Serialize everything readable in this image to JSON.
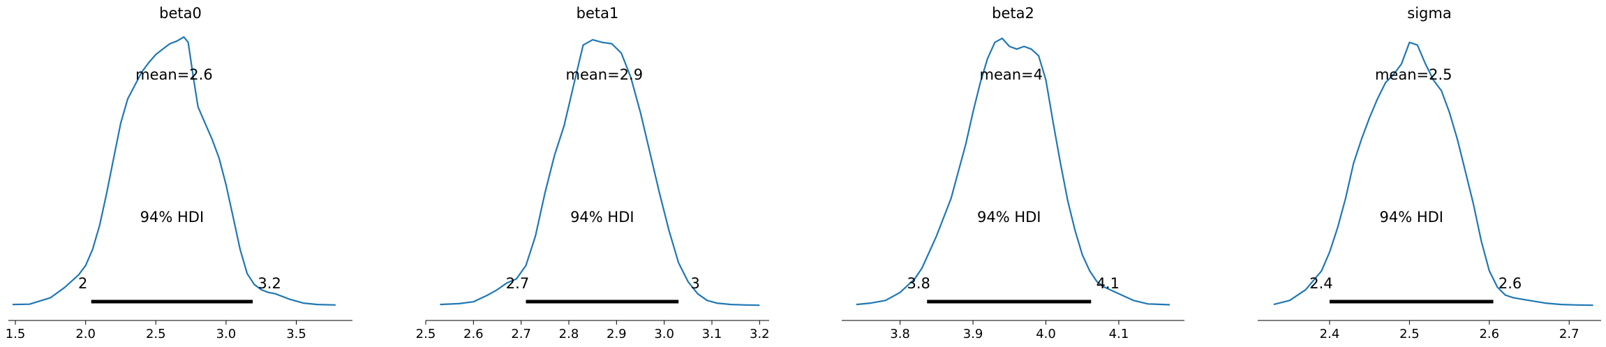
{
  "chart_data": [
    {
      "type": "line",
      "title": "beta0",
      "mean_label": "mean=2.6",
      "hdi_label": "94% HDI",
      "hdi": [
        2.04,
        3.19
      ],
      "hdi_low_label": "2",
      "hdi_high_label": "3.2",
      "xlim": [
        1.45,
        3.9
      ],
      "xticks": [
        1.5,
        2.0,
        2.5,
        3.0,
        3.5
      ],
      "xtick_labels": [
        "1.5",
        "2.0",
        "2.5",
        "3.0",
        "3.5"
      ],
      "x": [
        1.48,
        1.6,
        1.75,
        1.85,
        1.95,
        2.0,
        2.05,
        2.1,
        2.15,
        2.2,
        2.25,
        2.3,
        2.35,
        2.4,
        2.45,
        2.5,
        2.55,
        2.6,
        2.65,
        2.7,
        2.73,
        2.77,
        2.8,
        2.85,
        2.9,
        2.95,
        3.0,
        3.05,
        3.1,
        3.15,
        3.2,
        3.25,
        3.3,
        3.35,
        3.45,
        3.55,
        3.65,
        3.78
      ],
      "density": [
        0.005,
        0.006,
        0.03,
        0.068,
        0.115,
        0.15,
        0.21,
        0.3,
        0.42,
        0.55,
        0.68,
        0.77,
        0.82,
        0.87,
        0.905,
        0.935,
        0.955,
        0.975,
        0.985,
        1.0,
        0.98,
        0.84,
        0.74,
        0.68,
        0.62,
        0.55,
        0.45,
        0.33,
        0.21,
        0.12,
        0.08,
        0.06,
        0.05,
        0.045,
        0.025,
        0.01,
        0.005,
        0.003
      ]
    },
    {
      "type": "line",
      "title": "beta1",
      "mean_label": "mean=2.9",
      "hdi_label": "94% HDI",
      "hdi": [
        2.71,
        3.03
      ],
      "hdi_low_label": "2.7",
      "hdi_high_label": "3",
      "xlim": [
        2.5,
        3.22
      ],
      "xticks": [
        2.5,
        2.6,
        2.7,
        2.8,
        2.9,
        3.0,
        3.1,
        3.2
      ],
      "xtick_labels": [
        "2.5",
        "2.6",
        "2.7",
        "2.8",
        "2.9",
        "3.0",
        "3.1",
        "3.2"
      ],
      "x": [
        2.53,
        2.57,
        2.6,
        2.63,
        2.65,
        2.67,
        2.69,
        2.71,
        2.73,
        2.75,
        2.77,
        2.79,
        2.81,
        2.83,
        2.85,
        2.87,
        2.89,
        2.91,
        2.93,
        2.95,
        2.97,
        2.99,
        3.01,
        3.03,
        3.05,
        3.07,
        3.09,
        3.11,
        3.14,
        3.17,
        3.2
      ],
      "density": [
        0.005,
        0.008,
        0.015,
        0.04,
        0.06,
        0.085,
        0.1,
        0.15,
        0.26,
        0.42,
        0.56,
        0.67,
        0.82,
        0.97,
        0.99,
        0.98,
        0.975,
        0.94,
        0.85,
        0.72,
        0.57,
        0.42,
        0.28,
        0.16,
        0.09,
        0.045,
        0.02,
        0.01,
        0.005,
        0.003,
        0.002
      ]
    },
    {
      "type": "line",
      "title": "beta2",
      "mean_label": "mean=4",
      "hdi_label": "94% HDI",
      "hdi": [
        3.837,
        4.062
      ],
      "hdi_low_label": "3.8",
      "hdi_high_label": "4.1",
      "xlim": [
        3.72,
        4.19
      ],
      "xticks": [
        3.8,
        3.9,
        4.0,
        4.1
      ],
      "xtick_labels": [
        "3.8",
        "3.9",
        "4.0",
        "4.1"
      ],
      "x": [
        3.74,
        3.76,
        3.78,
        3.8,
        3.82,
        3.83,
        3.84,
        3.85,
        3.86,
        3.87,
        3.88,
        3.89,
        3.9,
        3.91,
        3.92,
        3.93,
        3.94,
        3.95,
        3.96,
        3.97,
        3.98,
        3.99,
        4.0,
        4.01,
        4.02,
        4.03,
        4.04,
        4.05,
        4.06,
        4.07,
        4.08,
        4.1,
        4.12,
        4.14,
        4.17
      ],
      "density": [
        0.005,
        0.01,
        0.02,
        0.05,
        0.1,
        0.14,
        0.2,
        0.26,
        0.33,
        0.4,
        0.5,
        0.6,
        0.72,
        0.83,
        0.92,
        0.98,
        0.995,
        0.965,
        0.955,
        0.965,
        0.955,
        0.93,
        0.84,
        0.68,
        0.53,
        0.39,
        0.28,
        0.19,
        0.13,
        0.09,
        0.07,
        0.045,
        0.02,
        0.007,
        0.004
      ]
    },
    {
      "type": "line",
      "title": "sigma",
      "mean_label": "mean=2.5",
      "hdi_label": "94% HDI",
      "hdi": [
        2.4,
        2.605
      ],
      "hdi_low_label": "2.4",
      "hdi_high_label": "2.6",
      "xlim": [
        2.31,
        2.74
      ],
      "xticks": [
        2.4,
        2.5,
        2.6,
        2.7
      ],
      "xtick_labels": [
        "2.4",
        "2.5",
        "2.6",
        "2.7"
      ],
      "x": [
        2.33,
        2.35,
        2.37,
        2.39,
        2.4,
        2.41,
        2.42,
        2.43,
        2.44,
        2.45,
        2.46,
        2.47,
        2.48,
        2.49,
        2.5,
        2.51,
        2.52,
        2.53,
        2.54,
        2.55,
        2.56,
        2.57,
        2.58,
        2.59,
        2.6,
        2.61,
        2.62,
        2.63,
        2.65,
        2.67,
        2.69,
        2.71,
        2.73
      ],
      "density": [
        0.005,
        0.02,
        0.06,
        0.13,
        0.2,
        0.29,
        0.4,
        0.53,
        0.62,
        0.7,
        0.77,
        0.83,
        0.86,
        0.9,
        0.98,
        0.97,
        0.9,
        0.84,
        0.8,
        0.72,
        0.62,
        0.5,
        0.38,
        0.24,
        0.13,
        0.07,
        0.04,
        0.03,
        0.02,
        0.01,
        0.005,
        0.003,
        0.002
      ]
    }
  ],
  "style": {
    "line_color": "#1f77b4",
    "hdi_color": "#000000",
    "axis_color": "#000000",
    "background": "#ffffff"
  }
}
